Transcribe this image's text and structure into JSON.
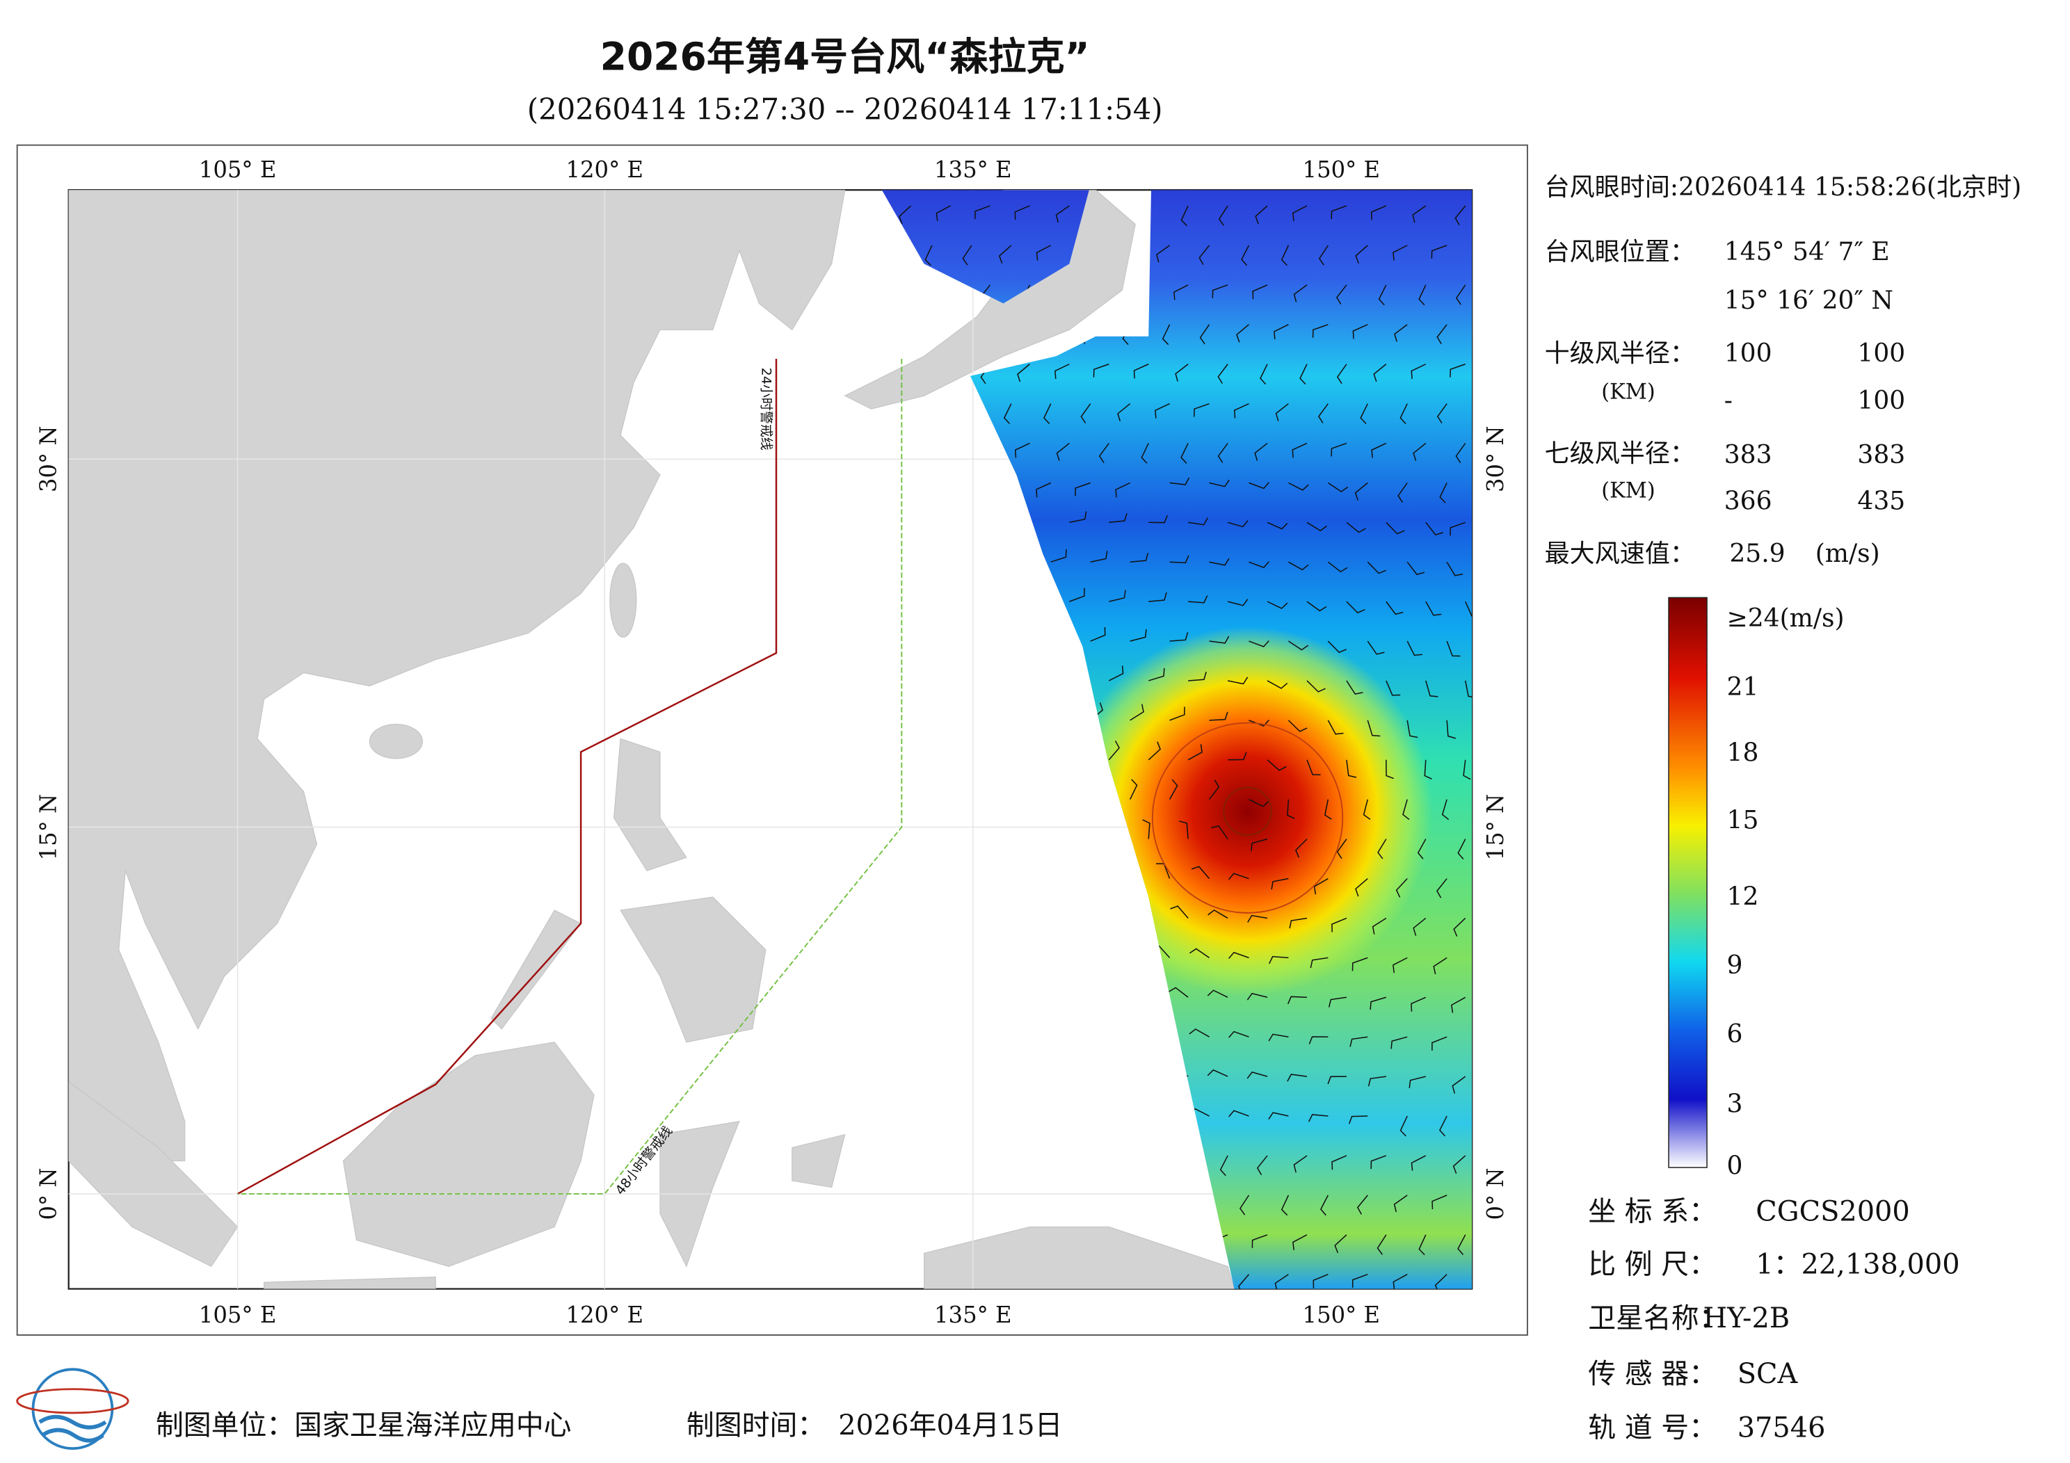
{
  "header": {
    "title": "2026年第4号台风“森拉克”",
    "subtitle": "(20260414 15:27:30 -- 20260414 17:11:54)"
  },
  "map": {
    "lon_labels": [
      "105° E",
      "120° E",
      "135° E",
      "150° E"
    ],
    "lat_labels": [
      "30° N",
      "15° N",
      "0° N"
    ],
    "warning_lines": [
      "24小时警戒线",
      "48小时警戒线"
    ]
  },
  "info": {
    "eye_time": "台风眼时间:20260414 15:58:26(北京时)",
    "eye_position": {
      "label": "台风眼位置：",
      "lon": "145° 54′ 7″ E",
      "lat": "15° 16′ 20″ N"
    },
    "r10": {
      "label": "十级风半径：",
      "unit": "(KM)",
      "values": [
        100,
        100,
        "-",
        100
      ]
    },
    "r7": {
      "label": "七级风半径：",
      "unit": "(KM)",
      "values": [
        383,
        383,
        366,
        435
      ]
    },
    "max_wind": {
      "label": "最大风速值：",
      "value": 25.9,
      "unit": "(m/s)"
    }
  },
  "colorbar": {
    "labels": [
      "≥24(m/s)",
      "21",
      "18",
      "15",
      "12",
      "9",
      "6",
      "3",
      "0"
    ]
  },
  "meta": {
    "rows": [
      [
        "坐 标 系：",
        "CGCS2000"
      ],
      [
        "比 例 尺：",
        "1：22,138,000"
      ],
      [
        "卫星名称：",
        "HY-2B"
      ],
      [
        "传 感 器：",
        "SCA"
      ],
      [
        "轨 道 号：",
        "37546"
      ]
    ]
  },
  "footer": {
    "unit": "制图单位：国家卫星海洋应用中心",
    "time_label": "制图时间：",
    "time": "2026年04月15日"
  }
}
